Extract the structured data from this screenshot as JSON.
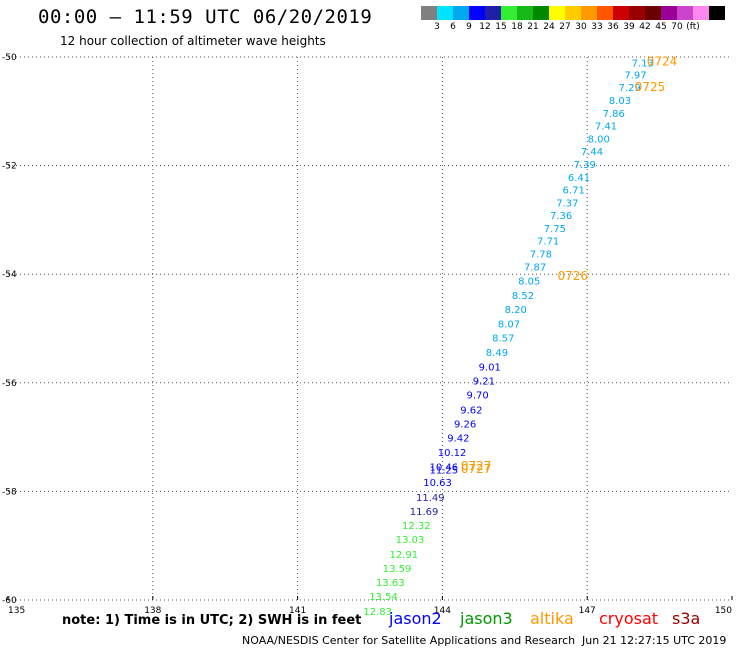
{
  "header": {
    "title": "00:00 – 11:59 UTC 06/20/2019",
    "subtitle": "12 hour collection of altimeter wave heights"
  },
  "colorbar": {
    "colors": [
      "#808080",
      "#00e5ff",
      "#00a8f0",
      "#0000ff",
      "#1f1fa8",
      "#33ee33",
      "#17b917",
      "#008800",
      "#ffff00",
      "#ffcc00",
      "#ff9900",
      "#ff5500",
      "#cc0000",
      "#990000",
      "#6b0000",
      "#990099",
      "#cc44cc",
      "#ff88ee",
      "#000000"
    ],
    "labels": [
      "3",
      "6",
      "9",
      "12",
      "15",
      "18",
      "21",
      "24",
      "27",
      "30",
      "33",
      "36",
      "39",
      "42",
      "45",
      "70",
      "(ft)"
    ]
  },
  "footer": {
    "note": "note: 1) Time is in UTC; 2) SWH is in feet",
    "satellites": [
      {
        "name": "jason2",
        "color": "#0000ff"
      },
      {
        "name": "jason3",
        "color": "#009900"
      },
      {
        "name": "altika",
        "color": "#ff9900"
      },
      {
        "name": "cryosat",
        "color": "#ff0000"
      },
      {
        "name": "s3a",
        "color": "#990000"
      }
    ],
    "credit": "NOAA/NESDIS Center for Satellite Applications and Research",
    "timestamp": "Jun 21 12:27:15 UTC 2019"
  },
  "chart_data": {
    "type": "scatter",
    "xlim": [
      135,
      150
    ],
    "ylim": [
      -60,
      -50
    ],
    "x_ticks": [
      "135",
      "138",
      "141",
      "144",
      "147",
      "150"
    ],
    "y_ticks": [
      "-50",
      "-52",
      "-54",
      "-56",
      "-58",
      "-60"
    ],
    "grid": true,
    "points": [
      {
        "x": 148.15,
        "y": -50.1,
        "v": "7.13",
        "c": "#00a8f0"
      },
      {
        "x": 148.0,
        "y": -50.32,
        "v": "7.97",
        "c": "#00a8f0"
      },
      {
        "x": 147.88,
        "y": -50.55,
        "v": "7.29",
        "c": "#00a8f0"
      },
      {
        "x": 147.68,
        "y": -50.79,
        "v": "8.03",
        "c": "#00a8f0"
      },
      {
        "x": 147.55,
        "y": -51.03,
        "v": "7.86",
        "c": "#00a8f0"
      },
      {
        "x": 147.39,
        "y": -51.26,
        "v": "7.41",
        "c": "#00a8f0"
      },
      {
        "x": 147.24,
        "y": -51.5,
        "v": "8.00",
        "c": "#00a8f0"
      },
      {
        "x": 147.1,
        "y": -51.73,
        "v": "7.44",
        "c": "#00a8f0"
      },
      {
        "x": 146.95,
        "y": -51.97,
        "v": "7.39",
        "c": "#00a8f0"
      },
      {
        "x": 146.83,
        "y": -52.21,
        "v": "6.41",
        "c": "#00a8f0"
      },
      {
        "x": 146.72,
        "y": -52.44,
        "v": "6.71",
        "c": "#00a8f0"
      },
      {
        "x": 146.59,
        "y": -52.68,
        "v": "7.37",
        "c": "#00a8f0"
      },
      {
        "x": 146.46,
        "y": -52.91,
        "v": "7.36",
        "c": "#00a8f0"
      },
      {
        "x": 146.33,
        "y": -53.15,
        "v": "7.75",
        "c": "#00a8f0"
      },
      {
        "x": 146.19,
        "y": -53.38,
        "v": "7.71",
        "c": "#00a8f0"
      },
      {
        "x": 146.04,
        "y": -53.62,
        "v": "7.78",
        "c": "#00a8f0"
      },
      {
        "x": 145.92,
        "y": -53.86,
        "v": "7.87",
        "c": "#00a8f0"
      },
      {
        "x": 145.8,
        "y": -54.12,
        "v": "8.05",
        "c": "#00a8f0"
      },
      {
        "x": 145.67,
        "y": -54.38,
        "v": "8.52",
        "c": "#00a8f0"
      },
      {
        "x": 145.52,
        "y": -54.64,
        "v": "8.20",
        "c": "#00a8f0"
      },
      {
        "x": 145.38,
        "y": -54.91,
        "v": "8.07",
        "c": "#00a8f0"
      },
      {
        "x": 145.26,
        "y": -55.17,
        "v": "8.57",
        "c": "#00a8f0"
      },
      {
        "x": 145.13,
        "y": -55.43,
        "v": "8.49",
        "c": "#00a8f0"
      },
      {
        "x": 144.98,
        "y": -55.7,
        "v": "9.01",
        "c": "#0000ff"
      },
      {
        "x": 144.86,
        "y": -55.96,
        "v": "9.21",
        "c": "#0000ff"
      },
      {
        "x": 144.73,
        "y": -56.22,
        "v": "9.70",
        "c": "#0000ff"
      },
      {
        "x": 144.6,
        "y": -56.49,
        "v": "9.62",
        "c": "#0000ff"
      },
      {
        "x": 144.47,
        "y": -56.75,
        "v": "9.26",
        "c": "#0000ff"
      },
      {
        "x": 144.33,
        "y": -57.01,
        "v": "9.42",
        "c": "#0000ff"
      },
      {
        "x": 144.2,
        "y": -57.27,
        "v": "10.12",
        "c": "#0000ff"
      },
      {
        "x": 144.03,
        "y": -57.54,
        "v": "10.46",
        "c": "#0000ff"
      },
      {
        "x": 144.03,
        "y": -57.6,
        "v": "11.25",
        "c": "#0000ff"
      },
      {
        "x": 143.9,
        "y": -57.83,
        "v": "10.63",
        "c": "#0000ff"
      },
      {
        "x": 143.75,
        "y": -58.1,
        "v": "11.49",
        "c": "#1f1fa8"
      },
      {
        "x": 143.62,
        "y": -58.36,
        "v": "11.69",
        "c": "#1f1fa8"
      },
      {
        "x": 143.46,
        "y": -58.62,
        "v": "12.32",
        "c": "#33ee33"
      },
      {
        "x": 143.33,
        "y": -58.88,
        "v": "13.03",
        "c": "#33ee33"
      },
      {
        "x": 143.2,
        "y": -59.15,
        "v": "12.91",
        "c": "#33ee33"
      },
      {
        "x": 143.06,
        "y": -59.41,
        "v": "13.59",
        "c": "#33ee33"
      },
      {
        "x": 142.92,
        "y": -59.67,
        "v": "13.63",
        "c": "#33ee33"
      },
      {
        "x": 142.78,
        "y": -59.93,
        "v": "13.54",
        "c": "#33ee33"
      },
      {
        "x": 142.66,
        "y": -60.2,
        "v": "12.83",
        "c": "#33ee33"
      }
    ],
    "time_labels": [
      {
        "x": 148.55,
        "y": -50.08,
        "t": "0724"
      },
      {
        "x": 148.3,
        "y": -50.55,
        "t": "0725"
      },
      {
        "x": 146.7,
        "y": -54.03,
        "t": "0726"
      },
      {
        "x": 144.7,
        "y": -57.53,
        "t": "0727"
      },
      {
        "x": 144.7,
        "y": -57.59,
        "t": "0727"
      }
    ],
    "time_label_color": "#ff9900"
  }
}
